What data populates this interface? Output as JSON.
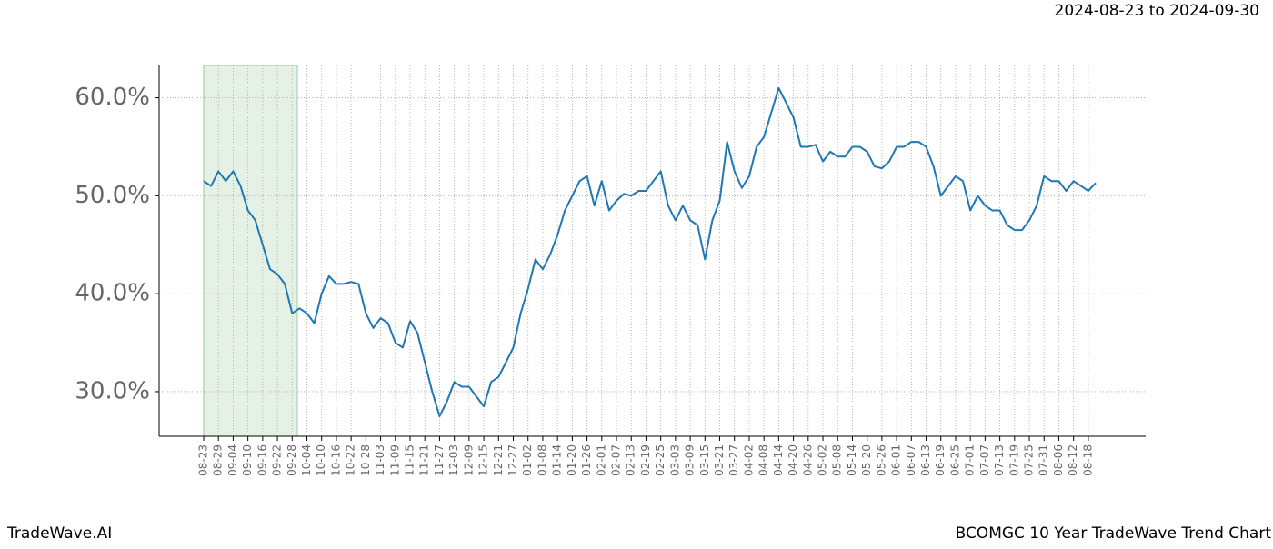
{
  "chart_data": {
    "type": "line",
    "title": "BCOMGC 10 Year TradeWave Trend Chart",
    "subtitle": "2024-08-23 to 2024-09-30",
    "brand": "TradeWave.AI",
    "categories": [
      "08-23",
      null,
      "08-29",
      null,
      "09-04",
      null,
      "09-10",
      null,
      "09-16",
      null,
      "09-22",
      null,
      "09-28",
      null,
      "10-04",
      null,
      "10-10",
      null,
      "10-16",
      null,
      "10-22",
      null,
      "10-28",
      null,
      "11-03",
      null,
      "11-09",
      null,
      "11-15",
      null,
      "11-21",
      null,
      "11-27",
      null,
      "12-03",
      null,
      "12-09",
      null,
      "12-15",
      null,
      "12-21",
      null,
      "12-27",
      null,
      "01-02",
      null,
      "01-08",
      null,
      "01-14",
      null,
      "01-20",
      null,
      "01-26",
      null,
      "02-01",
      null,
      "02-07",
      null,
      "02-13",
      null,
      "02-19",
      null,
      "02-25",
      null,
      "03-03",
      null,
      "03-09",
      null,
      "03-15",
      null,
      "03-21",
      null,
      "03-27",
      null,
      "04-02",
      null,
      "04-08",
      null,
      "04-14",
      null,
      "04-20",
      null,
      "04-26",
      null,
      "05-02",
      null,
      "05-08",
      null,
      "05-14",
      null,
      "05-20",
      null,
      "05-26",
      null,
      "06-01",
      null,
      "06-07",
      null,
      "06-13",
      null,
      "06-19",
      null,
      "06-25",
      null,
      "07-01",
      null,
      "07-07",
      null,
      "07-13",
      null,
      "07-19",
      null,
      "07-25",
      null,
      "07-31",
      null,
      "08-06",
      null,
      "08-12",
      null,
      "08-18",
      null
    ],
    "values": [
      51.5,
      51,
      52.5,
      51.5,
      52.5,
      51,
      48.5,
      47.5,
      45,
      42.5,
      42,
      41,
      38,
      38.5,
      38,
      37,
      40,
      41.8,
      41,
      41,
      41.2,
      41,
      38,
      36.5,
      37.5,
      37,
      35,
      34.5,
      37.2,
      36,
      33,
      30,
      27.5,
      29,
      31,
      30.5,
      30.5,
      29.5,
      28.5,
      31,
      31.5,
      33,
      34.5,
      38,
      40.5,
      43.5,
      42.5,
      44,
      46,
      48.5,
      50,
      51.5,
      52,
      49,
      51.5,
      48.5,
      49.5,
      50.2,
      50,
      50.5,
      50.5,
      51.5,
      52.5,
      49,
      47.5,
      49,
      47.5,
      47,
      43.5,
      47.5,
      49.5,
      55.5,
      52.5,
      50.8,
      52,
      55,
      56,
      58.5,
      61,
      59.5,
      58,
      55,
      55,
      55.2,
      53.5,
      54.5,
      54,
      54,
      55,
      55,
      54.5,
      53,
      52.8,
      53.5,
      55,
      55,
      55.5,
      55.5,
      55,
      53,
      50,
      51,
      52,
      51.5,
      48.5,
      50,
      49,
      48.5,
      48.5,
      47,
      46.5,
      46.5,
      47.5,
      49,
      52,
      51.5,
      51.5,
      50.5,
      51.5,
      51,
      50.5,
      51.3
    ],
    "color": "#1f77b4",
    "ylim": [
      25.45,
      63.3
    ],
    "yticks": [
      {
        "value": 30,
        "label": "30.0%"
      },
      {
        "value": 40,
        "label": "40.0%"
      },
      {
        "value": 50,
        "label": "50.0%"
      },
      {
        "value": 60,
        "label": "60.0%"
      }
    ],
    "grid": true
  }
}
